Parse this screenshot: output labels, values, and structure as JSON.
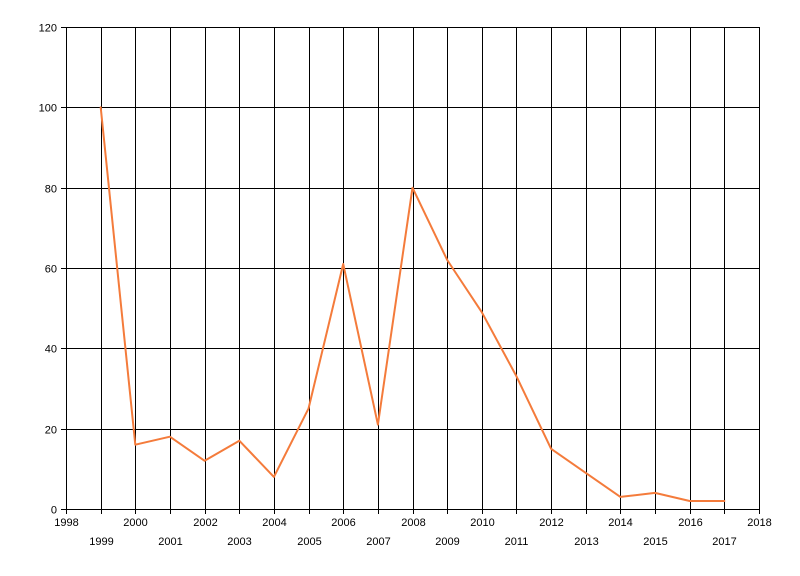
{
  "chart_data": {
    "type": "line",
    "title": "",
    "xlabel": "",
    "ylabel": "",
    "xlim": [
      1998,
      2018
    ],
    "ylim": [
      0,
      120
    ],
    "y_ticks": [
      0,
      20,
      40,
      60,
      80,
      100,
      120
    ],
    "x_ticks": [
      1998,
      1999,
      2000,
      2001,
      2002,
      2003,
      2004,
      2005,
      2006,
      2007,
      2008,
      2009,
      2010,
      2011,
      2012,
      2013,
      2014,
      2015,
      2016,
      2017,
      2018
    ],
    "grid": true,
    "legend": "none",
    "series": [
      {
        "color": "#f47b3b",
        "x": [
          1999,
          2000,
          2001,
          2002,
          2003,
          2004,
          2005,
          2006,
          2007,
          2008,
          2009,
          2010,
          2011,
          2012,
          2013,
          2014,
          2015,
          2016,
          2017
        ],
        "values": [
          100,
          16,
          18,
          12,
          17,
          8,
          25,
          61,
          21,
          80,
          62,
          49,
          33,
          15,
          9,
          3,
          4,
          2,
          2
        ]
      }
    ]
  }
}
